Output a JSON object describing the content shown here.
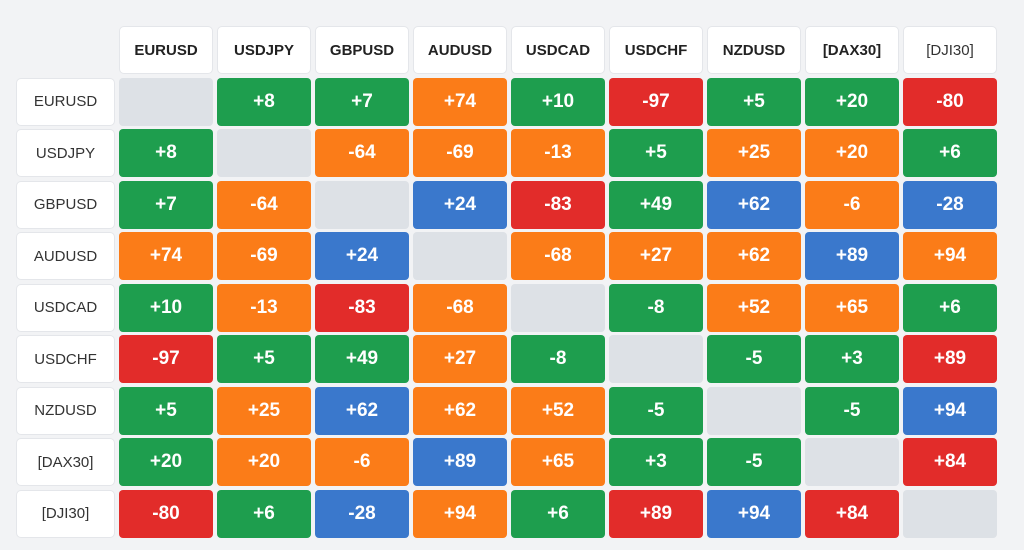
{
  "symbols": [
    "EURUSD",
    "USDJPY",
    "GBPUSD",
    "AUDUSD",
    "USDCAD",
    "USDCHF",
    "NZDUSD",
    "[DAX30]",
    "[DJI30]"
  ],
  "colors": {
    "green": "#1e9e4e",
    "orange": "#fb7c18",
    "red": "#e22c2a",
    "blue": "#3a78cc",
    "diagonal": "#dde1e6"
  },
  "rows": [
    [
      null,
      {
        "v": "+8",
        "c": "green"
      },
      {
        "v": "+7",
        "c": "green"
      },
      {
        "v": "+74",
        "c": "orange"
      },
      {
        "v": "+10",
        "c": "green"
      },
      {
        "v": "-97",
        "c": "red"
      },
      {
        "v": "+5",
        "c": "green"
      },
      {
        "v": "+20",
        "c": "green"
      },
      {
        "v": "-80",
        "c": "red"
      }
    ],
    [
      {
        "v": "+8",
        "c": "green"
      },
      null,
      {
        "v": "-64",
        "c": "orange"
      },
      {
        "v": "-69",
        "c": "orange"
      },
      {
        "v": "-13",
        "c": "orange"
      },
      {
        "v": "+5",
        "c": "green"
      },
      {
        "v": "+25",
        "c": "orange"
      },
      {
        "v": "+20",
        "c": "orange"
      },
      {
        "v": "+6",
        "c": "green"
      }
    ],
    [
      {
        "v": "+7",
        "c": "green"
      },
      {
        "v": "-64",
        "c": "orange"
      },
      null,
      {
        "v": "+24",
        "c": "blue"
      },
      {
        "v": "-83",
        "c": "red"
      },
      {
        "v": "+49",
        "c": "green"
      },
      {
        "v": "+62",
        "c": "blue"
      },
      {
        "v": "-6",
        "c": "orange"
      },
      {
        "v": "-28",
        "c": "blue"
      }
    ],
    [
      {
        "v": "+74",
        "c": "orange"
      },
      {
        "v": "-69",
        "c": "orange"
      },
      {
        "v": "+24",
        "c": "blue"
      },
      null,
      {
        "v": "-68",
        "c": "orange"
      },
      {
        "v": "+27",
        "c": "orange"
      },
      {
        "v": "+62",
        "c": "orange"
      },
      {
        "v": "+89",
        "c": "blue"
      },
      {
        "v": "+94",
        "c": "orange"
      }
    ],
    [
      {
        "v": "+10",
        "c": "green"
      },
      {
        "v": "-13",
        "c": "orange"
      },
      {
        "v": "-83",
        "c": "red"
      },
      {
        "v": "-68",
        "c": "orange"
      },
      null,
      {
        "v": "-8",
        "c": "green"
      },
      {
        "v": "+52",
        "c": "orange"
      },
      {
        "v": "+65",
        "c": "orange"
      },
      {
        "v": "+6",
        "c": "green"
      }
    ],
    [
      {
        "v": "-97",
        "c": "red"
      },
      {
        "v": "+5",
        "c": "green"
      },
      {
        "v": "+49",
        "c": "green"
      },
      {
        "v": "+27",
        "c": "orange"
      },
      {
        "v": "-8",
        "c": "green"
      },
      null,
      {
        "v": "-5",
        "c": "green"
      },
      {
        "v": "+3",
        "c": "green"
      },
      {
        "v": "+89",
        "c": "red"
      }
    ],
    [
      {
        "v": "+5",
        "c": "green"
      },
      {
        "v": "+25",
        "c": "orange"
      },
      {
        "v": "+62",
        "c": "blue"
      },
      {
        "v": "+62",
        "c": "orange"
      },
      {
        "v": "+52",
        "c": "orange"
      },
      {
        "v": "-5",
        "c": "green"
      },
      null,
      {
        "v": "-5",
        "c": "green"
      },
      {
        "v": "+94",
        "c": "blue"
      }
    ],
    [
      {
        "v": "+20",
        "c": "green"
      },
      {
        "v": "+20",
        "c": "orange"
      },
      {
        "v": "-6",
        "c": "orange"
      },
      {
        "v": "+89",
        "c": "blue"
      },
      {
        "v": "+65",
        "c": "orange"
      },
      {
        "v": "+3",
        "c": "green"
      },
      {
        "v": "-5",
        "c": "green"
      },
      null,
      {
        "v": "+84",
        "c": "red"
      }
    ],
    [
      {
        "v": "-80",
        "c": "red"
      },
      {
        "v": "+6",
        "c": "green"
      },
      {
        "v": "-28",
        "c": "blue"
      },
      {
        "v": "+94",
        "c": "orange"
      },
      {
        "v": "+6",
        "c": "green"
      },
      {
        "v": "+89",
        "c": "red"
      },
      {
        "v": "+94",
        "c": "blue"
      },
      {
        "v": "+84",
        "c": "red"
      },
      null
    ]
  ]
}
